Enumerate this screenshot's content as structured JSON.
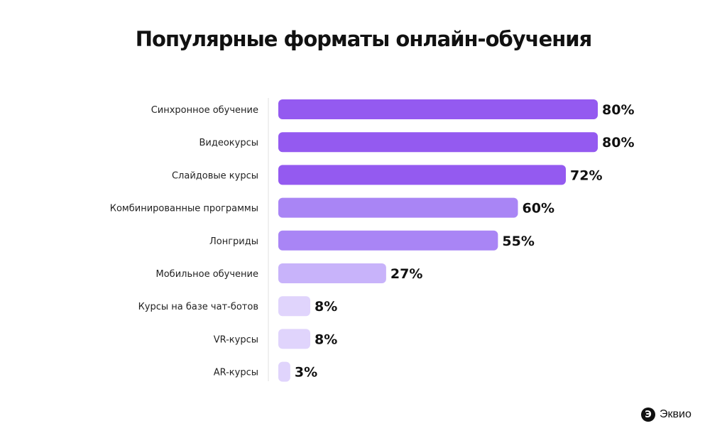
{
  "chart_data": {
    "type": "bar",
    "orientation": "horizontal",
    "title": "Популярные форматы онлайн-обучения",
    "categories": [
      "Синхронное обучение",
      "Видеокурсы",
      "Слайдовые курсы",
      "Комбинированные программы",
      "Лонгриды",
      "Мобильное обучение",
      "Курсы на базе чат-ботов",
      "VR-курсы",
      "AR-курсы"
    ],
    "values": [
      80,
      80,
      72,
      60,
      55,
      27,
      8,
      8,
      3
    ],
    "data_labels": [
      "80%",
      "80%",
      "72%",
      "60%",
      "55%",
      "27%",
      "8%",
      "8%",
      "3%"
    ],
    "bar_colors": [
      "#945af0",
      "#945af0",
      "#945af0",
      "#a985f5",
      "#a985f5",
      "#c8b3fa",
      "#e0d4fc",
      "#e0d4fc",
      "#e0d4fc"
    ],
    "xlabel": "",
    "ylabel": "",
    "xlim": [
      0,
      80
    ],
    "grid": false,
    "legend": "none"
  },
  "brand": {
    "name": "Эквио",
    "mark": "Э"
  }
}
